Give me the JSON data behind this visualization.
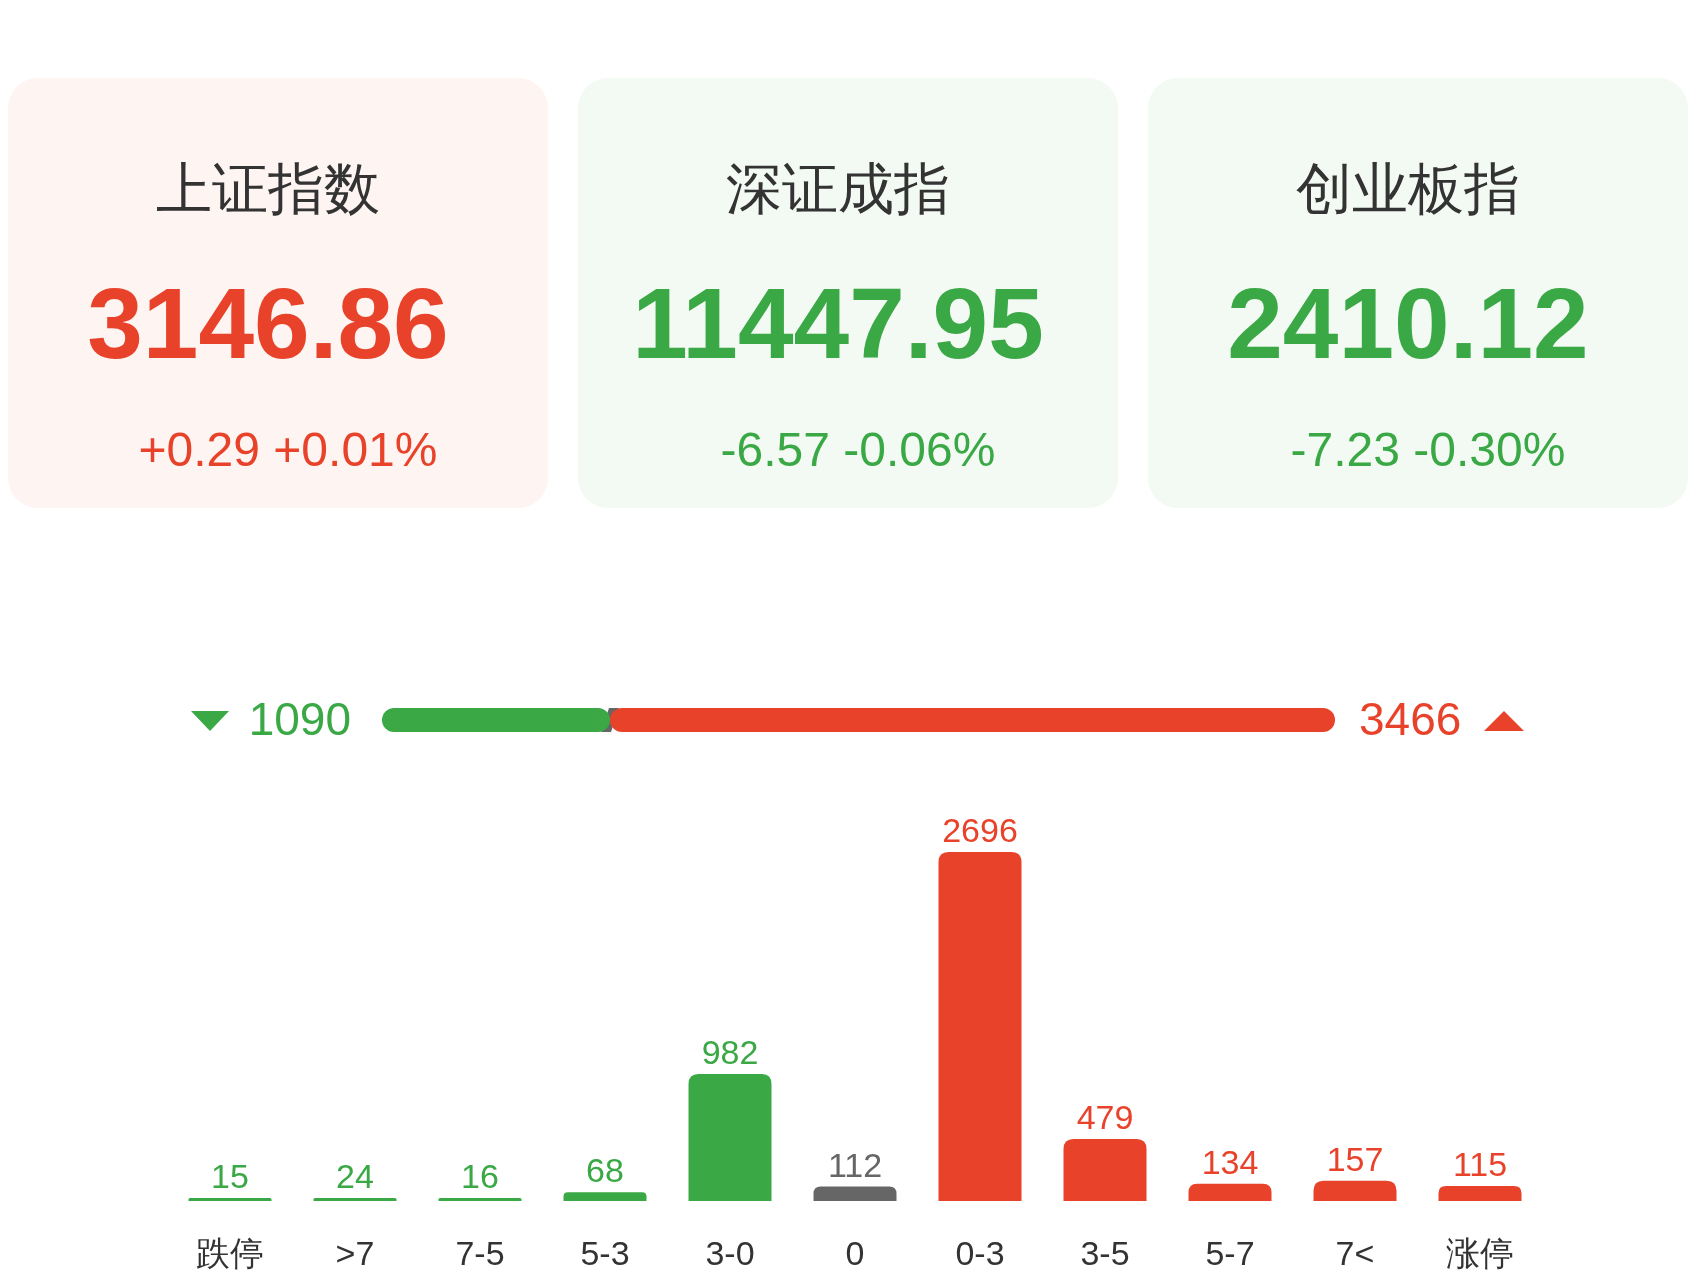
{
  "chart_data": [
    {
      "type": "other",
      "categories": [
        "上证指数",
        "深证成指",
        "创业板指"
      ],
      "values": [
        3146.86,
        11447.95,
        2410.12
      ],
      "data_labels": true,
      "annotations": [
        "+0.29 +0.01%",
        "-6.57 -0.06%",
        "-7.23 -0.30%"
      ],
      "colors": [
        "#e8432a",
        "#3aa845",
        "#3aa845"
      ]
    },
    {
      "type": "bar",
      "orientation": "horizontal",
      "stacked": true,
      "data_labels": true,
      "categories": [
        null
      ],
      "series": [
        {
          "color": "#3aa845",
          "values": [
            1090
          ]
        },
        {
          "color": "#e8432a",
          "values": [
            3466
          ]
        }
      ]
    },
    {
      "type": "bar",
      "categories": [
        "跌停",
        ">7",
        "7-5",
        "5-3",
        "3-0",
        "0",
        "0-3",
        "3-5",
        "5-7",
        "7<",
        "涨停"
      ],
      "values": [
        15,
        24,
        16,
        68,
        982,
        112,
        2696,
        479,
        134,
        157,
        115
      ],
      "colors": [
        "#3aa845",
        "#3aa845",
        "#3aa845",
        "#3aa845",
        "#3aa845",
        "#666666",
        "#e8432a",
        "#e8432a",
        "#e8432a",
        "#e8432a",
        "#e8432a"
      ],
      "data_labels": true
    }
  ]
}
